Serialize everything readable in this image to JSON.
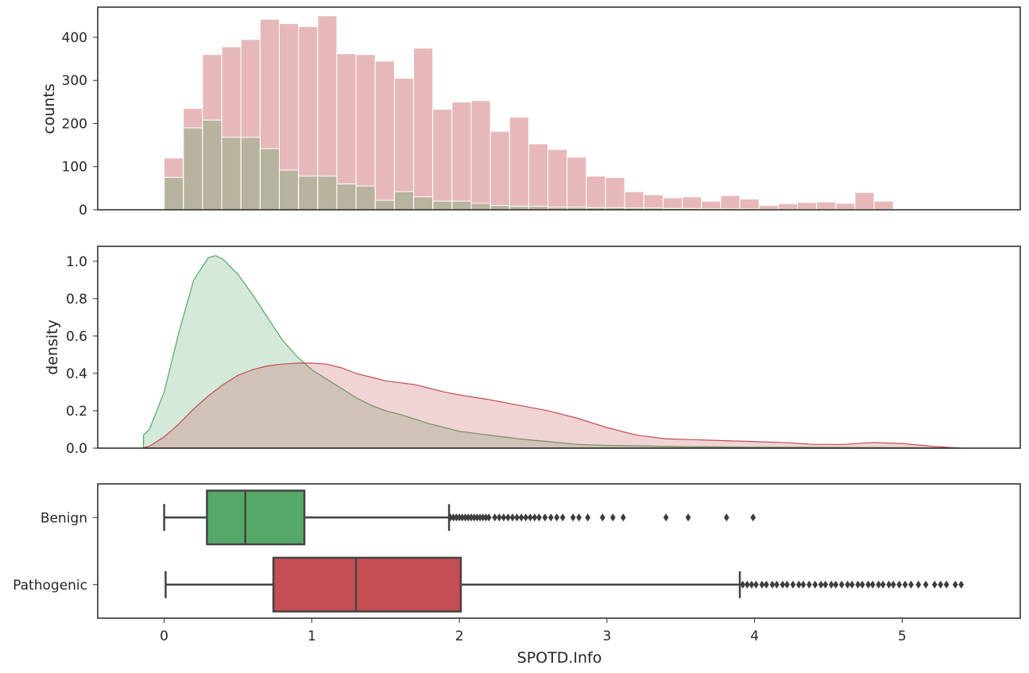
{
  "colors": {
    "benign": "#55a868",
    "pathogenic": "#c44e52",
    "box_line": "#444444",
    "frame": "#333333"
  },
  "chart_data": [
    {
      "type": "histogram",
      "ylabel": "counts",
      "xlim": [
        -0.45,
        5.8
      ],
      "ylim": [
        0,
        470
      ],
      "yticks": [
        0,
        100,
        200,
        300,
        400
      ],
      "series": [
        {
          "name": "Pathogenic",
          "bin_start": 0.0,
          "bin_width": 0.13,
          "values": [
            120,
            235,
            360,
            378,
            395,
            442,
            432,
            425,
            450,
            362,
            360,
            345,
            305,
            375,
            233,
            250,
            253,
            182,
            215,
            153,
            140,
            122,
            78,
            75,
            42,
            35,
            28,
            30,
            20,
            33,
            25,
            10,
            14,
            17,
            18,
            15,
            40,
            20
          ]
        },
        {
          "name": "Benign",
          "bin_start": 0.0,
          "bin_width": 0.13,
          "values": [
            75,
            190,
            208,
            168,
            168,
            142,
            92,
            78,
            78,
            60,
            55,
            22,
            42,
            30,
            20,
            20,
            15,
            10,
            8,
            8,
            6,
            6,
            5,
            5,
            4,
            4,
            3,
            3,
            2,
            2,
            2,
            1,
            1,
            1,
            1,
            1,
            1,
            1
          ]
        }
      ]
    },
    {
      "type": "area",
      "ylabel": "density",
      "xlim": [
        -0.45,
        5.8
      ],
      "ylim": [
        0,
        1.08
      ],
      "yticks": [
        0.0,
        0.2,
        0.4,
        0.6,
        0.8,
        1.0
      ],
      "ytick_labels": [
        "0.0",
        "0.2",
        "0.4",
        "0.6",
        "0.8",
        "1.0"
      ],
      "series": [
        {
          "name": "Benign",
          "x": [
            -0.14,
            -0.1,
            0.0,
            0.1,
            0.2,
            0.3,
            0.35,
            0.4,
            0.5,
            0.6,
            0.7,
            0.8,
            0.9,
            1.0,
            1.1,
            1.2,
            1.3,
            1.4,
            1.5,
            1.6,
            1.8,
            2.0,
            2.2,
            2.4,
            2.6,
            2.8,
            3.0,
            3.5,
            4.0,
            4.5,
            5.0,
            5.4
          ],
          "y": [
            0.07,
            0.1,
            0.3,
            0.62,
            0.9,
            1.02,
            1.03,
            1.01,
            0.93,
            0.82,
            0.7,
            0.58,
            0.49,
            0.42,
            0.37,
            0.32,
            0.27,
            0.23,
            0.2,
            0.18,
            0.13,
            0.09,
            0.07,
            0.05,
            0.035,
            0.02,
            0.015,
            0.008,
            0.005,
            0.004,
            0.003,
            0.0
          ]
        },
        {
          "name": "Pathogenic",
          "x": [
            -0.15,
            -0.1,
            0.0,
            0.1,
            0.2,
            0.3,
            0.4,
            0.5,
            0.6,
            0.7,
            0.8,
            0.9,
            1.0,
            1.1,
            1.2,
            1.3,
            1.4,
            1.5,
            1.6,
            1.7,
            1.8,
            1.9,
            2.0,
            2.2,
            2.4,
            2.6,
            2.8,
            3.0,
            3.2,
            3.4,
            3.6,
            3.8,
            4.0,
            4.2,
            4.4,
            4.6,
            4.8,
            5.0,
            5.2,
            5.4
          ],
          "y": [
            0.0,
            0.01,
            0.06,
            0.13,
            0.21,
            0.28,
            0.34,
            0.39,
            0.42,
            0.44,
            0.45,
            0.455,
            0.455,
            0.45,
            0.43,
            0.4,
            0.38,
            0.36,
            0.35,
            0.34,
            0.32,
            0.3,
            0.285,
            0.26,
            0.23,
            0.2,
            0.16,
            0.11,
            0.07,
            0.05,
            0.045,
            0.04,
            0.035,
            0.03,
            0.02,
            0.02,
            0.03,
            0.025,
            0.01,
            0.0
          ]
        }
      ]
    },
    {
      "type": "box",
      "xlabel": "SPOTD.Info",
      "xlim": [
        -0.45,
        5.8
      ],
      "xticks": [
        0,
        1,
        2,
        3,
        4,
        5
      ],
      "categories": [
        "Benign",
        "Pathogenic"
      ],
      "boxes": [
        {
          "name": "Benign",
          "whisker_low": 0.0,
          "q1": 0.29,
          "median": 0.55,
          "q3": 0.95,
          "whisker_high": 1.93,
          "outliers": [
            1.94,
            1.96,
            1.98,
            2.0,
            2.02,
            2.04,
            2.06,
            2.08,
            2.1,
            2.12,
            2.14,
            2.16,
            2.18,
            2.2,
            2.24,
            2.27,
            2.3,
            2.33,
            2.36,
            2.39,
            2.42,
            2.45,
            2.48,
            2.51,
            2.54,
            2.58,
            2.62,
            2.66,
            2.7,
            2.77,
            2.81,
            2.87,
            2.97,
            3.04,
            3.11,
            3.4,
            3.55,
            3.81,
            3.99
          ]
        },
        {
          "name": "Pathogenic",
          "whisker_low": 0.01,
          "q1": 0.74,
          "median": 1.3,
          "q3": 2.01,
          "whisker_high": 3.9,
          "outliers": [
            3.92,
            3.95,
            3.98,
            4.01,
            4.05,
            4.08,
            4.12,
            4.15,
            4.19,
            4.22,
            4.26,
            4.3,
            4.33,
            4.37,
            4.41,
            4.45,
            4.48,
            4.52,
            4.55,
            4.59,
            4.63,
            4.66,
            4.7,
            4.73,
            4.77,
            4.8,
            4.84,
            4.87,
            4.91,
            4.94,
            4.98,
            5.02,
            5.06,
            5.11,
            5.16,
            5.22,
            5.26,
            5.3,
            5.36,
            5.4
          ]
        }
      ]
    }
  ]
}
